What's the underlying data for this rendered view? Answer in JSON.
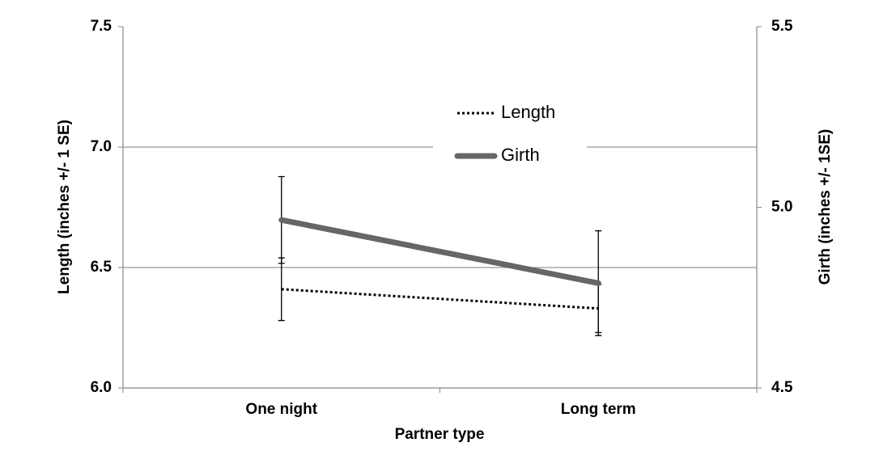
{
  "chart_data": {
    "type": "line",
    "x_label": "Partner type",
    "y_label": "Length (inches +/- 1 SE)",
    "y2_label": "Girth (inches +/- 1SE)",
    "categories": [
      "One night",
      "Long term"
    ],
    "ylim": [
      6.0,
      7.5
    ],
    "yticks": [
      {
        "value": 6,
        "label": "6.0"
      },
      6.5,
      {
        "value": 7,
        "label": "7.0"
      },
      7.5
    ],
    "y2lim": [
      4.5,
      5.5
    ],
    "y2ticks": [
      4.5,
      {
        "value": 5,
        "label": "5.0"
      },
      5.5
    ],
    "grid": true,
    "series": [
      {
        "name": "Length",
        "color": "#000000",
        "line_style": "dotted",
        "values": [
          6.41,
          6.33
        ],
        "errors": [
          0.13,
          0.1
        ]
      },
      {
        "name": "Girth",
        "color": "#666666",
        "line_style": "solid",
        "axis": "y2",
        "values": [
          4.965,
          4.79
        ],
        "errors": [
          0.12,
          0.145
        ]
      }
    ]
  }
}
